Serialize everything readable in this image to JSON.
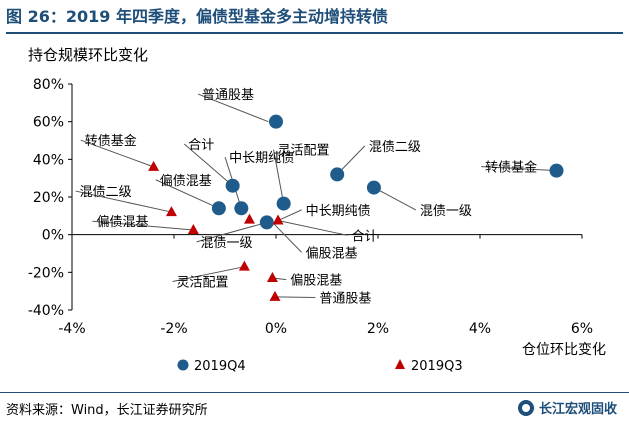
{
  "title": "图 26：2019 年四季度，偏债型基金多主动增持转债",
  "source": "资料来源：Wind，长江证券研究所",
  "watermark": "长江宏观固收",
  "colors": {
    "q4": "#1f5c8b",
    "q3": "#c00000",
    "title": "#1f4e79",
    "axis": "#000000"
  },
  "chart_data": {
    "type": "scatter",
    "xlabel": "仓位环比变化",
    "ylabel": "持仓规模环比变化",
    "xlim": [
      -0.04,
      0.06
    ],
    "ylim": [
      -0.4,
      0.8
    ],
    "xticks": [
      -0.04,
      -0.02,
      0,
      0.02,
      0.04,
      0.06
    ],
    "xtick_labels": [
      "-4%",
      "-2%",
      "0%",
      "2%",
      "4%",
      "6%"
    ],
    "yticks": [
      0.8,
      0.6,
      0.4,
      0.2,
      0,
      -0.2,
      -0.4
    ],
    "ytick_labels": [
      "80%",
      "60%",
      "40%",
      "20%",
      "0%",
      "-20%",
      "-40%"
    ],
    "legend_position": "bottom",
    "series": [
      {
        "name": "2019Q4",
        "marker": "circle",
        "points": [
          {
            "label": "普通股基",
            "x": 0.0,
            "y": 0.6
          },
          {
            "label": "合计",
            "x": -0.0085,
            "y": 0.26
          },
          {
            "label": "偏债混基",
            "x": -0.0112,
            "y": 0.14
          },
          {
            "label": "中长期纯债",
            "x": -0.0068,
            "y": 0.14
          },
          {
            "label": "混债一级",
            "x": -0.0018,
            "y": 0.065
          },
          {
            "label": "灵活配置",
            "x": 0.0015,
            "y": 0.165
          },
          {
            "label": "混债二级",
            "x": 0.012,
            "y": 0.32
          },
          {
            "label": "混债一级",
            "x": 0.0192,
            "y": 0.25
          },
          {
            "label": "转债基金",
            "x": 0.055,
            "y": 0.34
          }
        ]
      },
      {
        "name": "2019Q3",
        "marker": "triangle",
        "points": [
          {
            "label": "转债基金",
            "x": -0.024,
            "y": 0.36
          },
          {
            "label": "混债二级",
            "x": -0.0205,
            "y": 0.12
          },
          {
            "label": "偏债混基",
            "x": -0.0162,
            "y": 0.025
          },
          {
            "label": "中长期纯债",
            "x": -0.0052,
            "y": 0.08
          },
          {
            "label": "合计",
            "x": 0.0004,
            "y": 0.075
          },
          {
            "label": "偏股混基",
            "x": -0.0007,
            "y": -0.23
          },
          {
            "label": "灵活配置",
            "x": -0.0062,
            "y": -0.17
          },
          {
            "label": "普通股基",
            "x": -0.0002,
            "y": -0.33
          }
        ]
      }
    ],
    "annotations": [
      {
        "text": "普通股基",
        "tx": -0.0145,
        "ty": 0.72,
        "anchor": "start",
        "px": -0.0015,
        "py": 0.6
      },
      {
        "text": "合计",
        "tx": -0.0172,
        "ty": 0.455,
        "anchor": "start",
        "px": -0.0085,
        "py": 0.26
      },
      {
        "text": "中长期纯债",
        "tx": -0.0092,
        "ty": 0.385,
        "anchor": "start",
        "px": -0.0068,
        "py": 0.14
      },
      {
        "text": "偏债混基",
        "tx": -0.0228,
        "ty": 0.265,
        "anchor": "start",
        "px": -0.0112,
        "py": 0.14
      },
      {
        "text": "灵活配置",
        "tx": 0.0003,
        "ty": 0.425,
        "anchor": "start",
        "px": 0.0015,
        "py": 0.165
      },
      {
        "text": "混债二级",
        "tx": 0.0182,
        "ty": 0.445,
        "anchor": "start",
        "px": 0.012,
        "py": 0.32
      },
      {
        "text": "转债基金",
        "tx": 0.041,
        "ty": 0.335,
        "anchor": "start",
        "px": 0.055,
        "py": 0.34
      },
      {
        "text": "混债一级",
        "tx": 0.0282,
        "ty": 0.105,
        "anchor": "start",
        "px": 0.0192,
        "py": 0.25
      },
      {
        "text": "中长期纯债",
        "tx": 0.0058,
        "ty": 0.105,
        "anchor": "start",
        "px": 0.0004,
        "py": 0.075
      },
      {
        "text": "合计",
        "tx": 0.0148,
        "ty": -0.03,
        "anchor": "start",
        "px": 0.0004,
        "py": 0.075
      },
      {
        "text": "混债一级",
        "tx": -0.0148,
        "ty": -0.065,
        "anchor": "start",
        "px": -0.0018,
        "py": 0.065
      },
      {
        "text": "偏股混基",
        "tx": 0.0058,
        "ty": -0.12,
        "anchor": "start",
        "px": -0.0007,
        "py": 0.065
      },
      {
        "text": "转债基金",
        "tx": -0.0375,
        "ty": 0.475,
        "anchor": "start",
        "px": -0.024,
        "py": 0.36
      },
      {
        "text": "混债二级",
        "tx": -0.0385,
        "ty": 0.205,
        "anchor": "start",
        "px": -0.0205,
        "py": 0.12
      },
      {
        "text": "偏债混基",
        "tx": -0.0352,
        "ty": 0.045,
        "anchor": "start",
        "px": -0.0162,
        "py": 0.025
      },
      {
        "text": "灵活配置",
        "tx": -0.0195,
        "ty": -0.275,
        "anchor": "start",
        "px": -0.0062,
        "py": -0.17
      },
      {
        "text": "偏股混基",
        "tx": 0.0028,
        "ty": -0.265,
        "anchor": "start",
        "px": -0.0007,
        "py": -0.23
      },
      {
        "text": "普通股基",
        "tx": 0.0085,
        "ty": -0.36,
        "anchor": "start",
        "px": -0.0002,
        "py": -0.33
      }
    ]
  }
}
